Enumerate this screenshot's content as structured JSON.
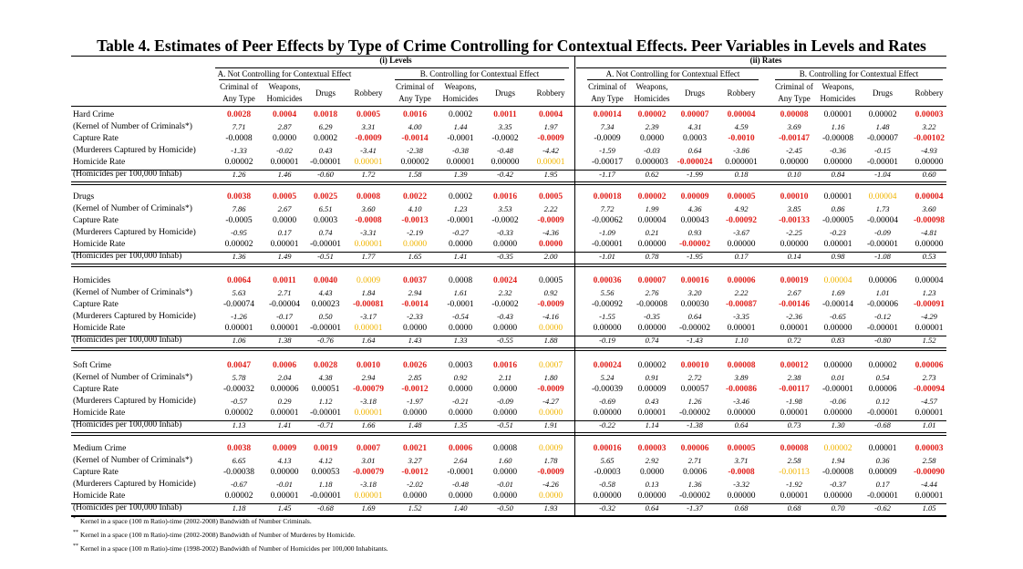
{
  "title": "Table 4. Estimates of Peer Effects by Type of Crime Controlling for Contextual Effects. Peer Variables in Levels and Rates",
  "section_labels": [
    "(i) Levels",
    "(ii) Rates"
  ],
  "group_labels": [
    "A. Not Controlling for Contextual Effect",
    "B. Controlling for Contextual Effect",
    "A. Not Controlling for Contextual Effect",
    "B. Controlling for Contextual Effect"
  ],
  "column_headers": [
    [
      "Criminal of",
      "Any Type"
    ],
    [
      "Weapons,",
      "Homicides"
    ],
    [
      "Drugs",
      ""
    ],
    [
      "Robbery",
      ""
    ]
  ],
  "row_labels": [
    "(Kernel of Number of Criminals*)",
    "Capture Rate",
    "(Murderers Captured by Homicide)",
    "Homicide Rate",
    "(Homicides per 100,000 Inhab)"
  ],
  "color_key": {
    "red": "#e0201b",
    "yellow": "#f0b400"
  },
  "blocks": [
    {
      "name": "Hard Crime",
      "rows": [
        [
          "0.0028|r",
          "0.0004|r",
          "0.0018|r",
          "0.0005|r",
          "0.0016|r",
          "0.0002",
          "0.0011|r",
          "0.0004|r",
          "0.00014|r",
          "0.00002|r",
          "0.00007|r",
          "0.00004|r",
          "0.00008|r",
          "0.00001",
          "0.00002",
          "0.00003|r"
        ],
        [
          "7.71",
          "2.87",
          "6.29",
          "3.31",
          "4.00",
          "1.44",
          "3.35",
          "1.97",
          "7.34",
          "2.39",
          "4.31",
          "4.59",
          "3.69",
          "1.16",
          "1.48",
          "3.22"
        ],
        [
          "-0.0008",
          "0.0000",
          "0.0002",
          "-0.0009|r",
          "-0.0014|r",
          "-0.0001",
          "-0.0002",
          "-0.0009|r",
          "-0.0009",
          "0.0000",
          "0.0003",
          "-0.0010|r",
          "-0.00147|r",
          "-0.00008",
          "-0.00007",
          "-0.00102|r"
        ],
        [
          "-1.33",
          "-0.02",
          "0.43",
          "-3.41",
          "-2.38",
          "-0.38",
          "-0.48",
          "-4.42",
          "-1.59",
          "-0.03",
          "0.64",
          "-3.86",
          "-2.45",
          "-0.36",
          "-0.15",
          "-4.93"
        ],
        [
          "0.00002",
          "0.00001",
          "-0.00001",
          "0.00001|y",
          "0.00002",
          "0.00001",
          "0.00000",
          "0.00001|y",
          "-0.00017",
          "0.000003",
          "-0.000024|r",
          "0.000001",
          "0.00000",
          "0.00000",
          "-0.00001",
          "0.00000"
        ],
        [
          "1.26",
          "1.46",
          "-0.60",
          "1.72",
          "1.58",
          "1.39",
          "-0.42",
          "1.95",
          "-1.17",
          "0.62",
          "-1.99",
          "0.18",
          "0.10",
          "0.84",
          "-1.04",
          "0.60"
        ]
      ]
    },
    {
      "name": "Drugs",
      "rows": [
        [
          "0.0038|r",
          "0.0005|r",
          "0.0025|r",
          "0.0008|r",
          "0.0022|r",
          "0.0002",
          "0.0016|r",
          "0.0005|r",
          "0.00018|r",
          "0.00002|r",
          "0.00009|r",
          "0.00005|r",
          "0.00010|r",
          "0.00001",
          "0.00004|y",
          "0.00004|r"
        ],
        [
          "7.86",
          "2.67",
          "6.51",
          "3.60",
          "4.10",
          "1.23",
          "3.53",
          "2.22",
          "7.72",
          "1.99",
          "4.36",
          "4.92",
          "3.85",
          "0.86",
          "1.73",
          "3.60"
        ],
        [
          "-0.0005",
          "0.0000",
          "0.0003",
          "-0.0008|r",
          "-0.0013|r",
          "-0.0001",
          "-0.0002",
          "-0.0009|r",
          "-0.00062",
          "0.00004",
          "0.00043",
          "-0.00092|r",
          "-0.00133|r",
          "-0.00005",
          "-0.00004",
          "-0.00098|r"
        ],
        [
          "-0.95",
          "0.17",
          "0.74",
          "-3.31",
          "-2.19",
          "-0.27",
          "-0.33",
          "-4.36",
          "-1.09",
          "0.21",
          "0.93",
          "-3.67",
          "-2.25",
          "-0.23",
          "-0.09",
          "-4.81"
        ],
        [
          "0.00002",
          "0.00001",
          "-0.00001",
          "0.00001|y",
          "0.0000|y",
          "0.0000",
          "0.0000",
          "0.0000|r",
          "-0.00001",
          "0.00000",
          "-0.00002|r",
          "0.00000",
          "0.00000",
          "0.00001",
          "-0.00001",
          "0.00000"
        ],
        [
          "1.36",
          "1.49",
          "-0.51",
          "1.77",
          "1.65",
          "1.41",
          "-0.35",
          "2.00",
          "-1.01",
          "0.78",
          "-1.95",
          "0.17",
          "0.14",
          "0.98",
          "-1.08",
          "0.53"
        ]
      ]
    },
    {
      "name": "Homicides",
      "rows": [
        [
          "0.0064|r",
          "0.0011|r",
          "0.0040|r",
          "0.0009|y",
          "0.0037|r",
          "0.0008",
          "0.0024|r",
          "0.0005",
          "0.00036|r",
          "0.00007|r",
          "0.00016|r",
          "0.00006|r",
          "0.00019|r",
          "0.00004|y",
          "0.00006",
          "0.00004"
        ],
        [
          "5.63",
          "2.71",
          "4.43",
          "1.84",
          "2.94",
          "1.61",
          "2.32",
          "0.92",
          "5.56",
          "2.76",
          "3.20",
          "2.22",
          "2.67",
          "1.69",
          "1.01",
          "1.23"
        ],
        [
          "-0.00074",
          "-0.00004",
          "0.00023",
          "-0.00081|r",
          "-0.0014|r",
          "-0.0001",
          "-0.0002",
          "-0.0009|r",
          "-0.00092",
          "-0.00008",
          "0.00030",
          "-0.00087|r",
          "-0.00146|r",
          "-0.00014",
          "-0.00006",
          "-0.00091|r"
        ],
        [
          "-1.26",
          "-0.17",
          "0.50",
          "-3.17",
          "-2.33",
          "-0.54",
          "-0.43",
          "-4.16",
          "-1.55",
          "-0.35",
          "0.64",
          "-3.35",
          "-2.36",
          "-0.65",
          "-0.12",
          "-4.29"
        ],
        [
          "0.00001",
          "0.00001",
          "-0.00001",
          "0.00001|y",
          "0.0000",
          "0.0000",
          "0.0000",
          "0.0000|y",
          "0.00000",
          "0.00000",
          "-0.00002",
          "0.00001",
          "0.00001",
          "0.00000",
          "-0.00001",
          "0.00001"
        ],
        [
          "1.06",
          "1.38",
          "-0.76",
          "1.64",
          "1.43",
          "1.33",
          "-0.55",
          "1.88",
          "-0.19",
          "0.74",
          "-1.43",
          "1.10",
          "0.72",
          "0.83",
          "-0.80",
          "1.52"
        ]
      ]
    },
    {
      "name": "Soft Crime",
      "rows": [
        [
          "0.0047|r",
          "0.0006|r",
          "0.0028|r",
          "0.0010|r",
          "0.0026|r",
          "0.0003",
          "0.0016|r",
          "0.0007|y",
          "0.00024|r",
          "0.00002",
          "0.00010|r",
          "0.00008|r",
          "0.00012|r",
          "0.00000",
          "0.00002",
          "0.00006|r"
        ],
        [
          "5.78",
          "2.04",
          "4.38",
          "2.94",
          "2.85",
          "0.92",
          "2.11",
          "1.80",
          "5.24",
          "0.91",
          "2.72",
          "3.89",
          "2.38",
          "0.01",
          "0.54",
          "2.73"
        ],
        [
          "-0.00032",
          "0.00006",
          "0.00051",
          "-0.00079|r",
          "-0.0012|r",
          "0.0000",
          "0.0000",
          "-0.0009|r",
          "-0.00039",
          "0.00009",
          "0.00057",
          "-0.00086|r",
          "-0.00117|r",
          "-0.00001",
          "0.00006",
          "-0.00094|r"
        ],
        [
          "-0.57",
          "0.29",
          "1.12",
          "-3.18",
          "-1.97",
          "-0.21",
          "-0.09",
          "-4.27",
          "-0.69",
          "0.43",
          "1.26",
          "-3.46",
          "-1.98",
          "-0.06",
          "0.12",
          "-4.57"
        ],
        [
          "0.00002",
          "0.00001",
          "-0.00001",
          "0.00001|y",
          "0.0000",
          "0.0000",
          "0.0000",
          "0.0000|y",
          "0.00000",
          "0.00001",
          "-0.00002",
          "0.00000",
          "0.00001",
          "0.00000",
          "-0.00001",
          "0.00001"
        ],
        [
          "1.13",
          "1.41",
          "-0.71",
          "1.66",
          "1.48",
          "1.35",
          "-0.51",
          "1.91",
          "-0.22",
          "1.14",
          "-1.38",
          "0.64",
          "0.73",
          "1.30",
          "-0.68",
          "1.01"
        ]
      ]
    },
    {
      "name": "Medium Crime",
      "rows": [
        [
          "0.0038|r",
          "0.0009|r",
          "0.0019|r",
          "0.0007|r",
          "0.0021|r",
          "0.0006|r",
          "0.0008",
          "0.0009|y",
          "0.00016|r",
          "0.00003|r",
          "0.00006|r",
          "0.00005|r",
          "0.00008|r",
          "0.00002|y",
          "0.00001",
          "0.00003|r"
        ],
        [
          "6.65",
          "4.13",
          "4.12",
          "3.01",
          "3.27",
          "2.64",
          "1.60",
          "1.78",
          "5.65",
          "2.92",
          "2.71",
          "3.71",
          "2.58",
          "1.94",
          "0.36",
          "2.58"
        ],
        [
          "-0.00038",
          "0.00000",
          "0.00053",
          "-0.00079|r",
          "-0.0012|r",
          "-0.0001",
          "0.0000",
          "-0.0009|r",
          "-0.0003",
          "0.0000",
          "0.0006",
          "-0.0008|r",
          "-0.00113|y",
          "-0.00008",
          "0.00009",
          "-0.00090|r"
        ],
        [
          "-0.67",
          "-0.01",
          "1.18",
          "-3.18",
          "-2.02",
          "-0.48",
          "-0.01",
          "-4.26",
          "-0.58",
          "0.13",
          "1.36",
          "-3.32",
          "-1.92",
          "-0.37",
          "0.17",
          "-4.44"
        ],
        [
          "0.00002",
          "0.00001",
          "-0.00001",
          "0.00001|y",
          "0.0000",
          "0.0000",
          "0.0000",
          "0.0000|y",
          "0.00000",
          "0.00000",
          "-0.00002",
          "0.00000",
          "0.00001",
          "0.00000",
          "-0.00001",
          "0.00001"
        ],
        [
          "1.18",
          "1.45",
          "-0.68",
          "1.69",
          "1.52",
          "1.40",
          "-0.50",
          "1.93",
          "-0.32",
          "0.64",
          "-1.37",
          "0.68",
          "0.68",
          "0.70",
          "-0.62",
          "1.05"
        ]
      ]
    }
  ],
  "footnotes": [
    {
      "mark": "*",
      "text": "Kernel in a space (100 m Ratio)-time (2002-2008) Bandwidth of Number Criminals."
    },
    {
      "mark": "**",
      "text": "Kernel in a space (100 m Ratio)-time (2002-2008) Bandwidth of Number of Murderes by Homicide."
    },
    {
      "mark": "**",
      "text": "Kernel in a space (100 m Ratio)-time (1998-2002) Bandwidth of Number of Homicides per 100,000 Inhabitants."
    }
  ]
}
